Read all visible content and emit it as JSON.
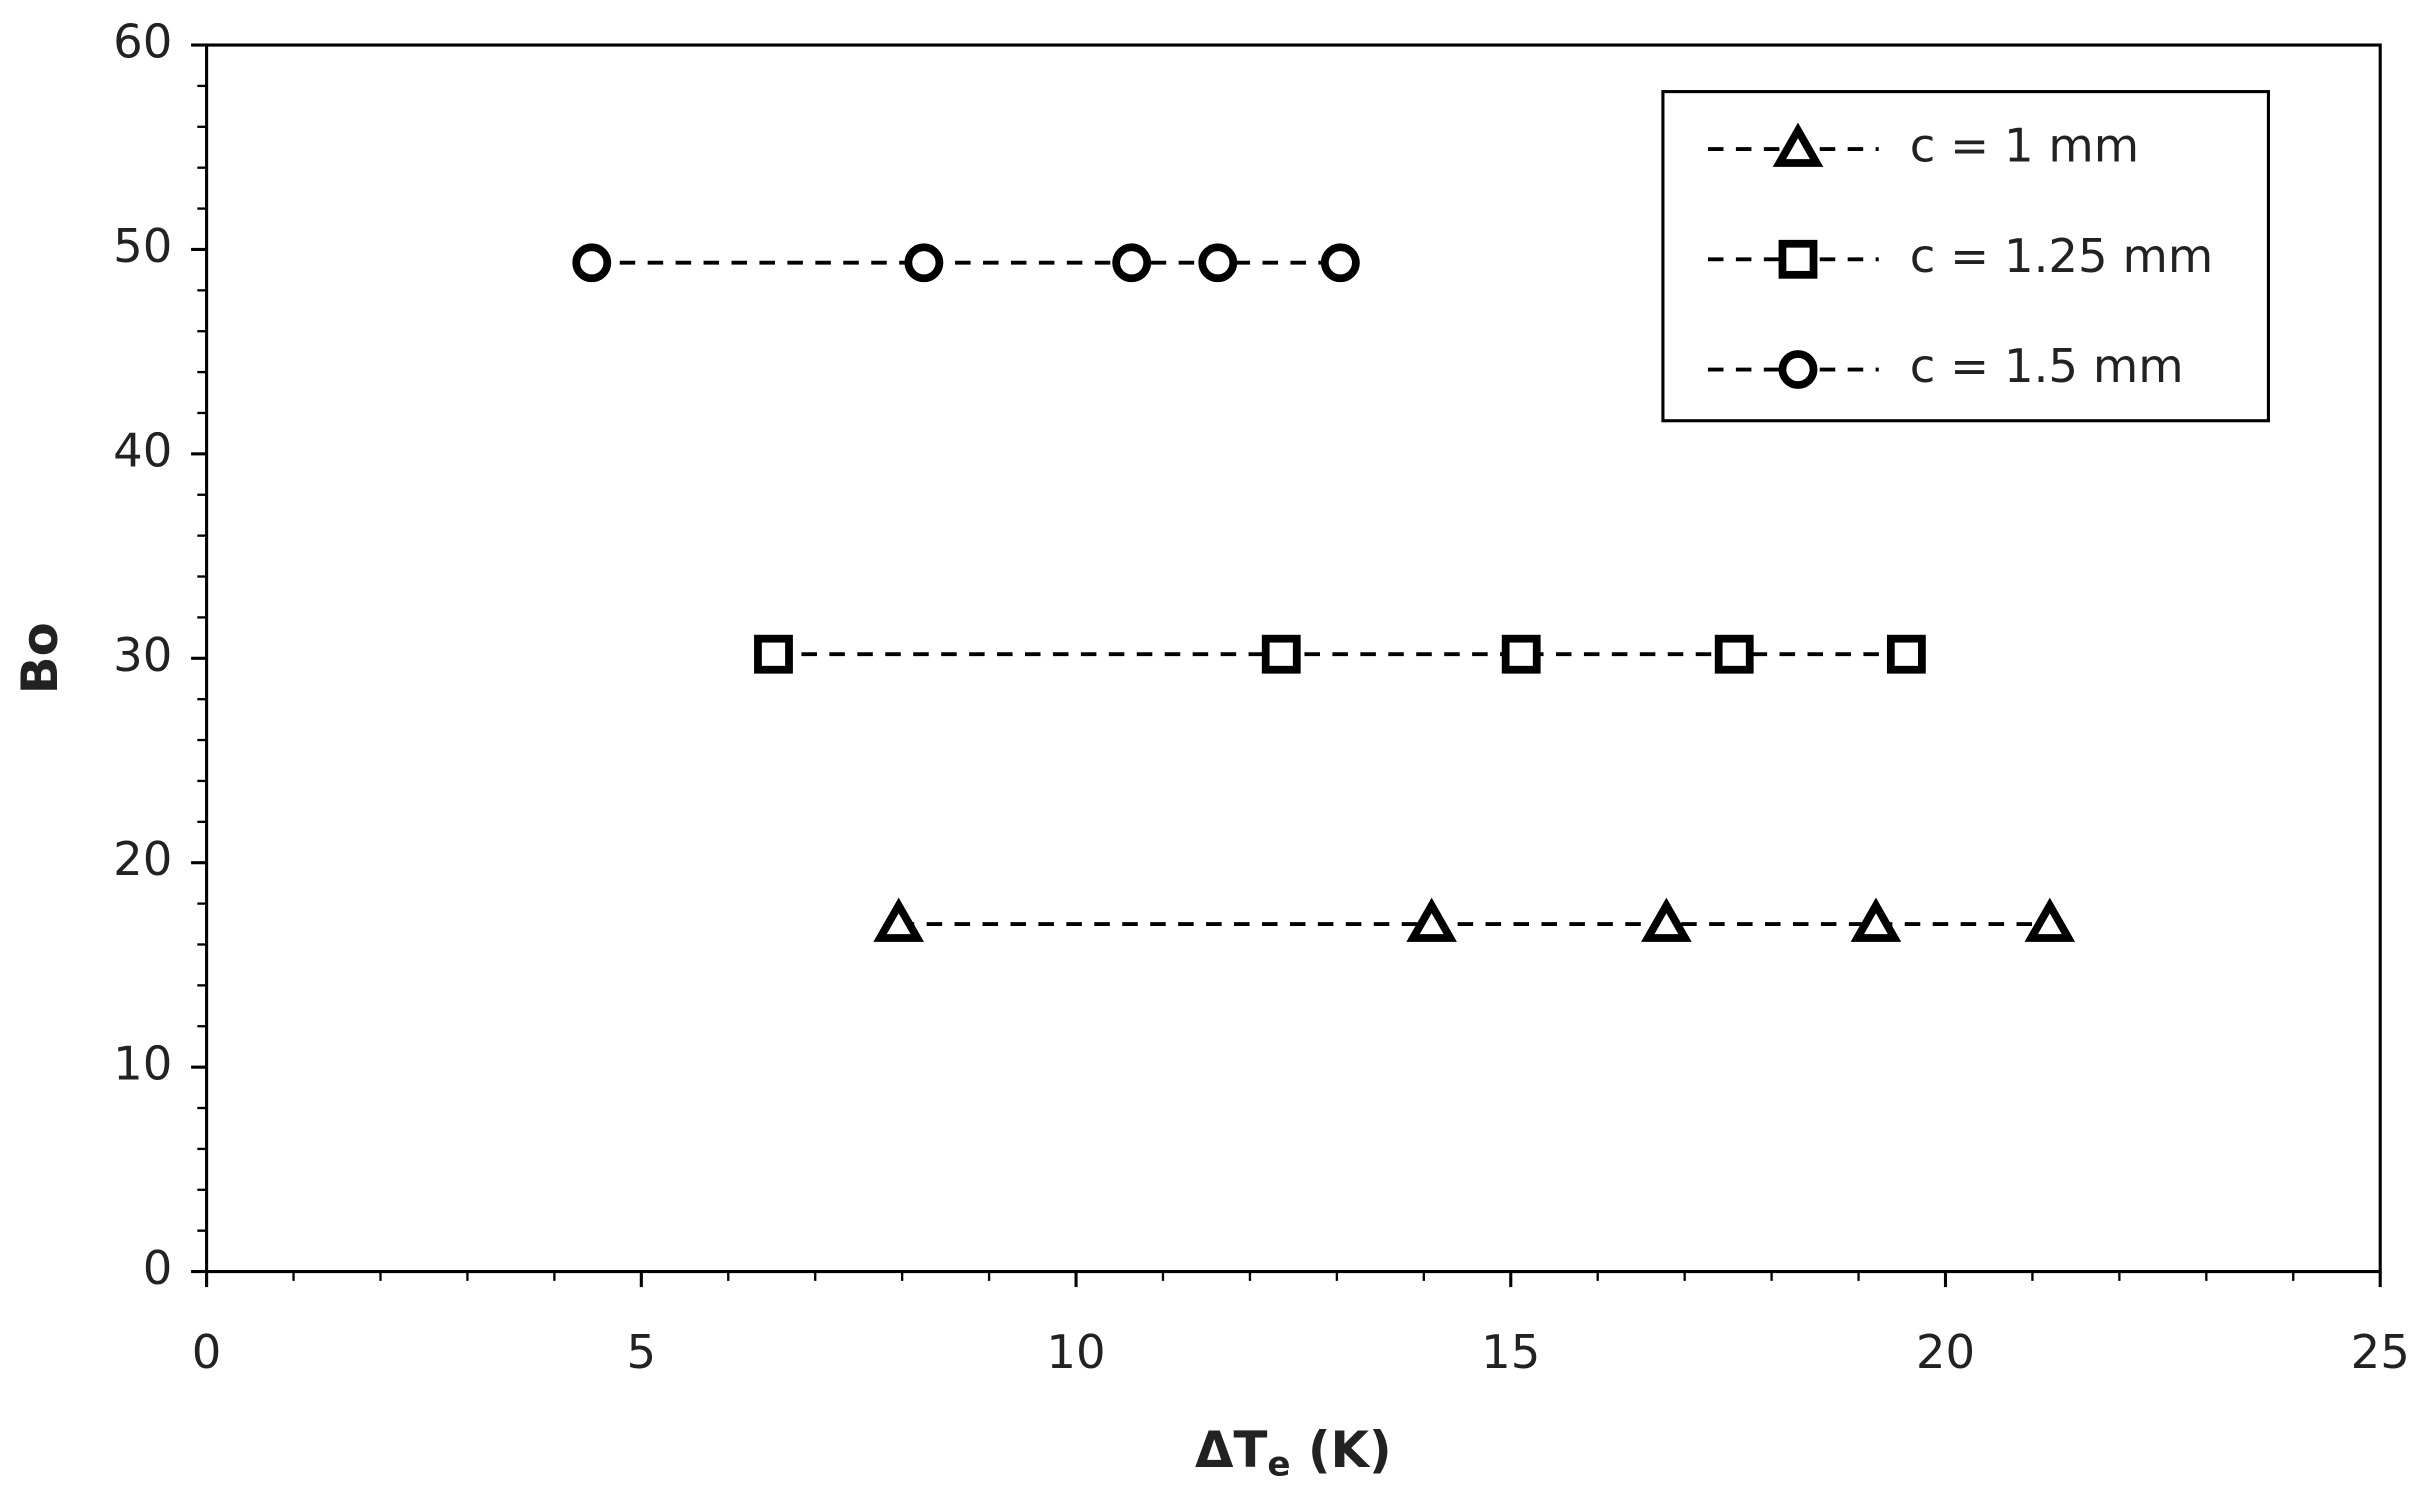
{
  "chart_data": {
    "type": "scatter",
    "x_label": {
      "main": "ΔT",
      "sub": "e",
      "rest": " (K)"
    },
    "y_label": "Bo",
    "xlim": [
      0,
      25
    ],
    "xticks": [
      0,
      5,
      10,
      15,
      20,
      25
    ],
    "xminorticks": [
      1,
      2,
      3,
      4,
      6,
      7,
      8,
      9,
      11,
      12,
      13,
      14,
      16,
      17,
      18,
      19,
      21,
      22,
      23,
      24
    ],
    "ylim": [
      0,
      60
    ],
    "yticks": [
      0,
      10,
      20,
      30,
      40,
      50,
      60
    ],
    "yminorticks": [
      2,
      4,
      6,
      8,
      12,
      14,
      16,
      18,
      22,
      24,
      26,
      28,
      32,
      34,
      36,
      38,
      42,
      44,
      46,
      48,
      52,
      54,
      56,
      58
    ],
    "grid": false,
    "legend": "upper right",
    "linestyle": "dashed",
    "series": [
      {
        "name": "c = 1 mm",
        "marker": "triangle",
        "color": "#000000",
        "x": [
          7.96,
          14.09,
          16.79,
          19.2,
          21.2
        ],
        "values": [
          17,
          17,
          17,
          17,
          17
        ]
      },
      {
        "name": "c = 1.25 mm",
        "marker": "square",
        "color": "#000000",
        "x": [
          6.52,
          12.36,
          15.12,
          17.57,
          19.55
        ],
        "values": [
          30.2,
          30.2,
          30.2,
          30.2,
          30.2
        ]
      },
      {
        "name": "c = 1.5 mm",
        "marker": "circle",
        "color": "#000000",
        "x": [
          4.43,
          8.25,
          10.64,
          11.63,
          13.04
        ],
        "values": [
          49.35,
          49.35,
          49.35,
          49.35,
          49.35
        ]
      }
    ]
  }
}
